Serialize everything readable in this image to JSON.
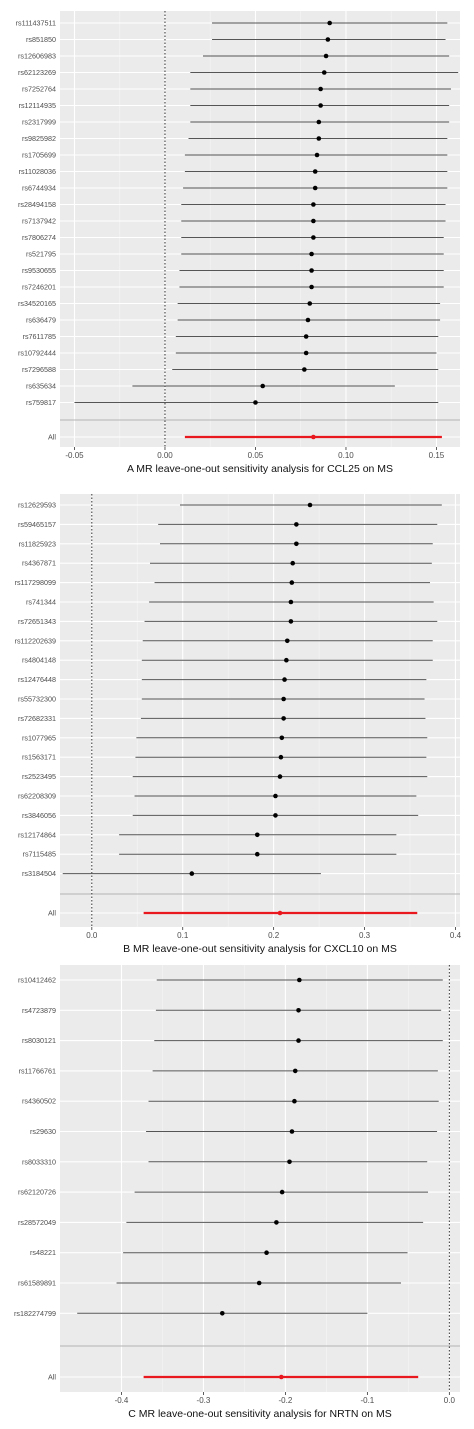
{
  "colors": {
    "panel_background": "#ebebeb",
    "grid_major": "#ffffff",
    "grid_minor": "#f5f5f5",
    "ci_line": "#555555",
    "point": "#000000",
    "overall": "#e8181e",
    "separator": "#b3b3b3",
    "zero_line": "#333333"
  },
  "chart_data": [
    {
      "type": "forest",
      "caption": "A   MR leave-one-out sensitivity analysis for CCL25 on MS",
      "xlim": [
        -0.058,
        0.163
      ],
      "xticks": [
        -0.05,
        0,
        0.05,
        0.1,
        0.15
      ],
      "xtick_labels": [
        "-0.05",
        "0.00",
        "0.05",
        "0.10",
        "0.15"
      ],
      "reference_line": 0,
      "rows": [
        {
          "snp": "rs111437511",
          "b": 0.091,
          "lo": 0.026,
          "hi": 0.156
        },
        {
          "snp": "rs851850",
          "b": 0.09,
          "lo": 0.026,
          "hi": 0.155
        },
        {
          "snp": "rs12606983",
          "b": 0.089,
          "lo": 0.021,
          "hi": 0.157
        },
        {
          "snp": "rs62123269",
          "b": 0.088,
          "lo": 0.014,
          "hi": 0.162
        },
        {
          "snp": "rs7252764",
          "b": 0.086,
          "lo": 0.014,
          "hi": 0.158
        },
        {
          "snp": "rs12114935",
          "b": 0.086,
          "lo": 0.014,
          "hi": 0.157
        },
        {
          "snp": "rs2317999",
          "b": 0.085,
          "lo": 0.014,
          "hi": 0.157
        },
        {
          "snp": "rs9825982",
          "b": 0.085,
          "lo": 0.013,
          "hi": 0.156
        },
        {
          "snp": "rs1705699",
          "b": 0.084,
          "lo": 0.011,
          "hi": 0.156
        },
        {
          "snp": "rs11028036",
          "b": 0.083,
          "lo": 0.011,
          "hi": 0.156
        },
        {
          "snp": "rs6744934",
          "b": 0.083,
          "lo": 0.01,
          "hi": 0.156
        },
        {
          "snp": "rs28494158",
          "b": 0.082,
          "lo": 0.009,
          "hi": 0.155
        },
        {
          "snp": "rs7137942",
          "b": 0.082,
          "lo": 0.009,
          "hi": 0.155
        },
        {
          "snp": "rs7806274",
          "b": 0.082,
          "lo": 0.009,
          "hi": 0.154
        },
        {
          "snp": "rs521795",
          "b": 0.081,
          "lo": 0.009,
          "hi": 0.154
        },
        {
          "snp": "rs9530655",
          "b": 0.081,
          "lo": 0.008,
          "hi": 0.154
        },
        {
          "snp": "rs7246201",
          "b": 0.081,
          "lo": 0.008,
          "hi": 0.154
        },
        {
          "snp": "rs34520165",
          "b": 0.08,
          "lo": 0.007,
          "hi": 0.152
        },
        {
          "snp": "rs636479",
          "b": 0.079,
          "lo": 0.007,
          "hi": 0.152
        },
        {
          "snp": "rs7611785",
          "b": 0.078,
          "lo": 0.006,
          "hi": 0.151
        },
        {
          "snp": "rs10792444",
          "b": 0.078,
          "lo": 0.006,
          "hi": 0.15
        },
        {
          "snp": "rs7296588",
          "b": 0.077,
          "lo": 0.004,
          "hi": 0.151
        },
        {
          "snp": "rs635634",
          "b": 0.054,
          "lo": -0.018,
          "hi": 0.127
        },
        {
          "snp": "rs759817",
          "b": 0.05,
          "lo": -0.05,
          "hi": 0.151
        }
      ],
      "overall": {
        "snp": "All",
        "b": 0.082,
        "lo": 0.011,
        "hi": 0.153
      }
    },
    {
      "type": "forest",
      "caption": "B   MR leave-one-out sensitivity analysis for CXCL10 on MS",
      "xlim": [
        -0.035,
        0.405
      ],
      "xticks": [
        0,
        0.1,
        0.2,
        0.3,
        0.4
      ],
      "xtick_labels": [
        "0.0",
        "0.1",
        "0.2",
        "0.3",
        "0.4"
      ],
      "reference_line": 0,
      "rows": [
        {
          "snp": "rs12629593",
          "b": 0.24,
          "lo": 0.097,
          "hi": 0.385
        },
        {
          "snp": "rs59465157",
          "b": 0.225,
          "lo": 0.073,
          "hi": 0.38
        },
        {
          "snp": "rs11825923",
          "b": 0.225,
          "lo": 0.075,
          "hi": 0.375
        },
        {
          "snp": "rs4367871",
          "b": 0.221,
          "lo": 0.064,
          "hi": 0.374
        },
        {
          "snp": "rs117298099",
          "b": 0.22,
          "lo": 0.069,
          "hi": 0.372
        },
        {
          "snp": "rs741344",
          "b": 0.219,
          "lo": 0.063,
          "hi": 0.376
        },
        {
          "snp": "rs72651343",
          "b": 0.219,
          "lo": 0.058,
          "hi": 0.38
        },
        {
          "snp": "rs112202639",
          "b": 0.215,
          "lo": 0.056,
          "hi": 0.375
        },
        {
          "snp": "rs4804148",
          "b": 0.214,
          "lo": 0.055,
          "hi": 0.375
        },
        {
          "snp": "rs12476448",
          "b": 0.212,
          "lo": 0.055,
          "hi": 0.368
        },
        {
          "snp": "rs55732300",
          "b": 0.211,
          "lo": 0.055,
          "hi": 0.366
        },
        {
          "snp": "rs72682331",
          "b": 0.211,
          "lo": 0.054,
          "hi": 0.367
        },
        {
          "snp": "rs1077965",
          "b": 0.209,
          "lo": 0.049,
          "hi": 0.369
        },
        {
          "snp": "rs1563171",
          "b": 0.208,
          "lo": 0.048,
          "hi": 0.368
        },
        {
          "snp": "rs2523495",
          "b": 0.207,
          "lo": 0.045,
          "hi": 0.369
        },
        {
          "snp": "rs62208309",
          "b": 0.202,
          "lo": 0.047,
          "hi": 0.357
        },
        {
          "snp": "rs3846056",
          "b": 0.202,
          "lo": 0.045,
          "hi": 0.359
        },
        {
          "snp": "rs12174864",
          "b": 0.182,
          "lo": 0.03,
          "hi": 0.335
        },
        {
          "snp": "rs7115485",
          "b": 0.182,
          "lo": 0.03,
          "hi": 0.335
        },
        {
          "snp": "rs3184504",
          "b": 0.11,
          "lo": -0.032,
          "hi": 0.252
        }
      ],
      "overall": {
        "snp": "All",
        "b": 0.207,
        "lo": 0.057,
        "hi": 0.358
      }
    },
    {
      "type": "forest",
      "caption": "C   MR leave-one-out sensitivity analysis for NRTN on MS",
      "xlim": [
        -0.475,
        0.013
      ],
      "xticks": [
        -0.4,
        -0.3,
        -0.2,
        -0.1,
        0
      ],
      "xtick_labels": [
        "-0.4",
        "-0.3",
        "-0.2",
        "-0.1",
        "0.0"
      ],
      "reference_line": 0,
      "rows": [
        {
          "snp": "rs10412462",
          "b": -0.183,
          "lo": -0.357,
          "hi": -0.008
        },
        {
          "snp": "rs4723879",
          "b": -0.184,
          "lo": -0.358,
          "hi": -0.01
        },
        {
          "snp": "rs8030121",
          "b": -0.184,
          "lo": -0.36,
          "hi": -0.008
        },
        {
          "snp": "rs11766761",
          "b": -0.188,
          "lo": -0.362,
          "hi": -0.014
        },
        {
          "snp": "rs4360502",
          "b": -0.189,
          "lo": -0.367,
          "hi": -0.013
        },
        {
          "snp": "rs29630",
          "b": -0.192,
          "lo": -0.37,
          "hi": -0.015
        },
        {
          "snp": "rs8033310",
          "b": -0.195,
          "lo": -0.367,
          "hi": -0.027
        },
        {
          "snp": "rs62120726",
          "b": -0.204,
          "lo": -0.384,
          "hi": -0.026
        },
        {
          "snp": "rs28572049",
          "b": -0.211,
          "lo": -0.394,
          "hi": -0.032
        },
        {
          "snp": "rs48221",
          "b": -0.223,
          "lo": -0.398,
          "hi": -0.051
        },
        {
          "snp": "rs61589891",
          "b": -0.232,
          "lo": -0.406,
          "hi": -0.059
        },
        {
          "snp": "rs182274799",
          "b": -0.277,
          "lo": -0.454,
          "hi": -0.1
        }
      ],
      "overall": {
        "snp": "All",
        "b": -0.205,
        "lo": -0.373,
        "hi": -0.038
      }
    }
  ]
}
